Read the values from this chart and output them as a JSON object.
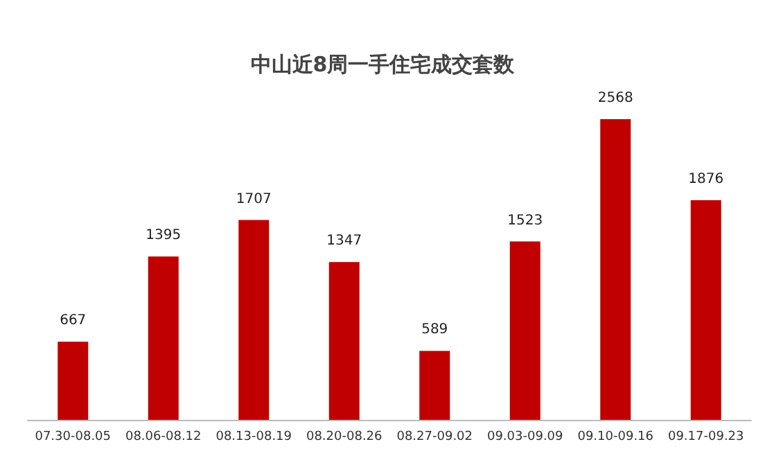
{
  "chart_data": {
    "type": "bar",
    "title": "中山近8周一手住宅成交套数",
    "categories": [
      "07.30-08.05",
      "08.06-08.12",
      "08.13-08.19",
      "08.20-08.26",
      "08.27-09.02",
      "09.03-09.09",
      "09.10-09.16",
      "09.17-09.23"
    ],
    "values": [
      667,
      1395,
      1707,
      1347,
      589,
      1523,
      2568,
      1876
    ],
    "color": "#c00000",
    "data_labels": true
  }
}
